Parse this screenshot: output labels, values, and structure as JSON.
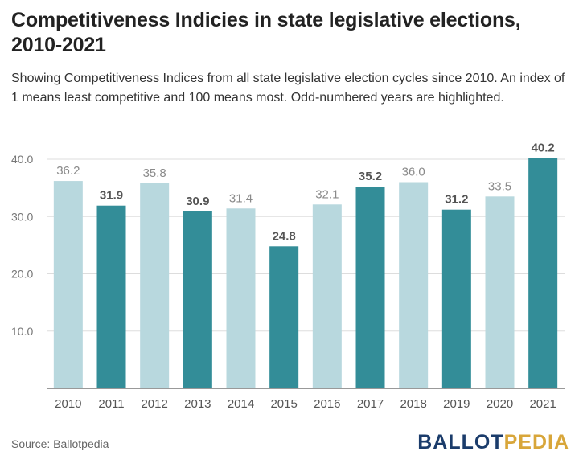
{
  "title": "Competitiveness Indicies in state legislative elections, 2010-2021",
  "subtitle": "Showing Competitiveness Indices from all state legislative election cycles since 2010. An index of 1 means least competitive and 100 means most. Odd-numbered years are highlighted.",
  "source": "Source: Ballotpedia",
  "logo": {
    "part1": "BALLOT",
    "part2": "PEDIA"
  },
  "colors": {
    "highlight": "#338d98",
    "normal": "#b8d8de",
    "highlight_label": "#555555",
    "normal_label": "#8a8a8a"
  },
  "chart_data": {
    "type": "bar",
    "categories": [
      "2010",
      "2011",
      "2012",
      "2013",
      "2014",
      "2015",
      "2016",
      "2017",
      "2018",
      "2019",
      "2020",
      "2021"
    ],
    "values": [
      36.2,
      31.9,
      35.8,
      30.9,
      31.4,
      24.8,
      32.1,
      35.2,
      36.0,
      31.2,
      33.5,
      40.2
    ],
    "value_labels": [
      "36.2",
      "31.9",
      "35.8",
      "30.9",
      "31.4",
      "24.8",
      "32.1",
      "35.2",
      "36.0",
      "31.2",
      "33.5",
      "40.2"
    ],
    "highlighted": [
      false,
      true,
      false,
      true,
      false,
      true,
      false,
      true,
      false,
      true,
      false,
      true
    ],
    "yticks": [
      10,
      20,
      30,
      40
    ],
    "ytick_labels": [
      "10.0",
      "20.0",
      "30.0",
      "40.0"
    ],
    "ylim": [
      0,
      40
    ],
    "grid": true,
    "xlabel": "",
    "ylabel": ""
  }
}
